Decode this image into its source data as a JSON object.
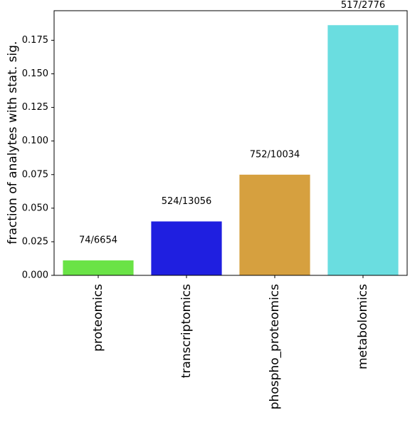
{
  "chart_data": {
    "type": "bar",
    "ylabel": "fraction of analytes with stat. sig.",
    "categories": [
      "proteomics",
      "transcriptomics",
      "phospho_proteomics",
      "metabolomics"
    ],
    "values": [
      0.01112,
      0.04013,
      0.07494,
      0.18624
    ],
    "value_labels": [
      "74/6654",
      "524/13056",
      "752/10034",
      "517/2776"
    ],
    "colors": [
      "#6ae346",
      "#1f1fe0",
      "#d6a03f",
      "#6adde0"
    ],
    "ylim": [
      0,
      0.197
    ],
    "yticks": [
      {
        "value": 0,
        "label": "0.000"
      },
      {
        "value": 0.025,
        "label": "0.025"
      },
      {
        "value": 0.05,
        "label": "0.050"
      },
      {
        "value": 0.075,
        "label": "0.075"
      },
      {
        "value": 0.1,
        "label": "0.100"
      },
      {
        "value": 0.125,
        "label": "0.125"
      },
      {
        "value": 0.15,
        "label": "0.150"
      },
      {
        "value": 0.175,
        "label": "0.175"
      }
    ],
    "grid": false
  }
}
